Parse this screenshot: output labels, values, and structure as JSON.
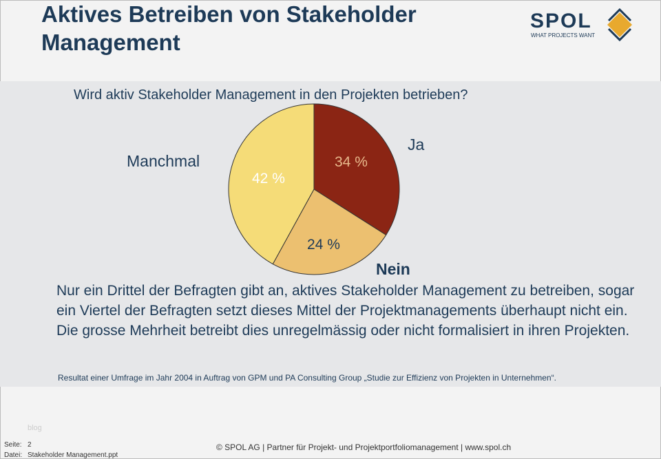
{
  "title": "Aktives Betreiben von Stakeholder Management",
  "logo": {
    "name": "SPOL",
    "tagline": "WHAT PROJECTS WANT"
  },
  "question": "Wird aktiv Stakeholder Management in den Projekten betrieben?",
  "chart_data": {
    "type": "pie",
    "title": "Wird aktiv Stakeholder Management in den Projekten betrieben?",
    "slices": [
      {
        "name": "Ja",
        "value": 34,
        "label": "34 %",
        "color": "#8b2514"
      },
      {
        "name": "Nein",
        "value": 24,
        "label": "24 %",
        "color": "#ecc070"
      },
      {
        "name": "Manchmal",
        "value": 42,
        "label": "42 %",
        "color": "#f5dc78"
      }
    ]
  },
  "body": "Nur ein Drittel der Befragten gibt an, aktives Stakeholder Management zu betreiben, sogar ein Viertel der Befragten setzt dieses Mittel der Projektmanagements überhaupt nicht ein. Die grosse Mehrheit betreibt dies unregelmässig oder nicht formalisiert in ihren Projekten.",
  "source": "Resultat einer Umfrage im Jahr 2004 in Auftrag von GPM und PA Consulting Group „Studie zur Effizienz von Projekten in Unternehmen“.",
  "footer": {
    "blog": "blog",
    "seite_label": "Seite:",
    "seite": "2",
    "datei_label": "Datei:",
    "datei": "Stakeholder Management.ppt",
    "copyright": "© SPOL AG | Partner für Projekt- und Projektportfoliomanagement | www.spol.ch"
  }
}
